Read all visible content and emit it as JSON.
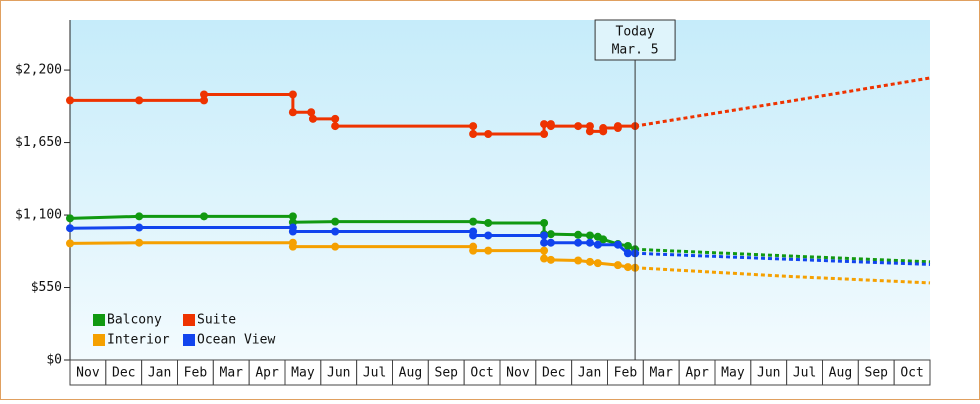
{
  "chart_data": {
    "type": "line",
    "annotation": {
      "x": 15.77,
      "lines": [
        "Today",
        "Mar. 5"
      ]
    },
    "categories": [
      "Nov",
      "Dec",
      "Jan",
      "Feb",
      "Mar",
      "Apr",
      "May",
      "Jun",
      "Jul",
      "Aug",
      "Sep",
      "Oct",
      "Nov",
      "Dec",
      "Jan",
      "Feb",
      "Mar",
      "Apr",
      "May",
      "Jun",
      "Jul",
      "Aug",
      "Sep",
      "Oct"
    ],
    "xlim": [
      0,
      24
    ],
    "ylim": [
      0,
      2580
    ],
    "yticks": [
      {
        "value": 0,
        "label": "$0"
      },
      {
        "value": 550,
        "label": "$550"
      },
      {
        "value": 1100,
        "label": "$1,100"
      },
      {
        "value": 1650,
        "label": "$1,650"
      },
      {
        "value": 2200,
        "label": "$2,200"
      }
    ],
    "legend": "lower left",
    "series": [
      {
        "name": "Balcony",
        "color": "#119911",
        "x": [
          0,
          1.93,
          3.74,
          6.22,
          6.22,
          7.4,
          11.25,
          11.67,
          13.23,
          13.23,
          13.42,
          14.18,
          14.51,
          14.73,
          14.88,
          15.29,
          15.57,
          15.77
        ],
        "values": [
          1075,
          1090,
          1090,
          1090,
          1045,
          1050,
          1050,
          1040,
          1040,
          955,
          955,
          950,
          945,
          935,
          915,
          880,
          865,
          840
        ],
        "projection": {
          "x": [
            15.77,
            20,
            24
          ],
          "values": [
            840,
            790,
            745
          ]
        }
      },
      {
        "name": "Suite",
        "color": "#ee3300",
        "x": [
          0,
          1.93,
          3.74,
          3.74,
          6.22,
          6.22,
          6.73,
          6.78,
          7.4,
          7.4,
          11.25,
          11.25,
          11.67,
          13.23,
          13.23,
          13.42,
          13.42,
          14.18,
          14.51,
          14.51,
          14.88,
          14.88,
          15.29,
          15.29,
          15.77
        ],
        "values": [
          1970,
          1970,
          1970,
          2015,
          2015,
          1880,
          1880,
          1830,
          1830,
          1775,
          1775,
          1715,
          1715,
          1715,
          1790,
          1790,
          1775,
          1775,
          1775,
          1735,
          1735,
          1760,
          1760,
          1775,
          1775
        ],
        "projection": {
          "x": [
            15.77,
            20,
            24
          ],
          "values": [
            1775,
            1960,
            2140
          ]
        }
      },
      {
        "name": "Interior",
        "color": "#f5a000",
        "x": [
          0,
          1.93,
          6.22,
          6.22,
          7.4,
          11.25,
          11.25,
          11.67,
          13.23,
          13.23,
          13.42,
          14.18,
          14.51,
          14.73,
          15.29,
          15.57,
          15.77
        ],
        "values": [
          885,
          890,
          890,
          860,
          860,
          860,
          830,
          830,
          830,
          770,
          760,
          755,
          745,
          735,
          720,
          705,
          700
        ],
        "projection": {
          "x": [
            15.77,
            20,
            24
          ],
          "values": [
            700,
            635,
            585
          ]
        }
      },
      {
        "name": "Ocean View",
        "color": "#1144ee",
        "x": [
          0,
          1.93,
          6.22,
          6.22,
          7.4,
          11.25,
          11.25,
          11.67,
          13.23,
          13.23,
          13.42,
          14.18,
          14.51,
          14.73,
          15.29,
          15.57,
          15.77
        ],
        "values": [
          1000,
          1005,
          1005,
          975,
          975,
          975,
          945,
          945,
          945,
          890,
          890,
          890,
          890,
          875,
          875,
          810,
          810
        ],
        "projection": {
          "x": [
            15.77,
            20,
            24
          ],
          "values": [
            810,
            765,
            725
          ]
        }
      }
    ]
  }
}
